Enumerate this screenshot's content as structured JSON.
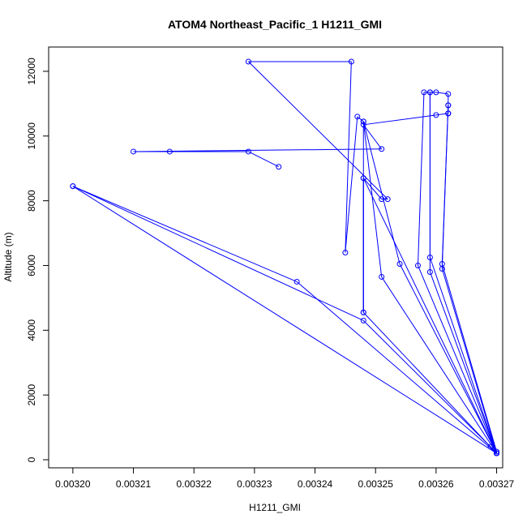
{
  "chart_data": {
    "type": "line",
    "title": "ATOM4 Northeast_Pacific_1 H1211_GMI",
    "xlabel": "H1211_GMI",
    "ylabel": "Altitude (m)",
    "xlim": [
      0.003196,
      0.003271
    ],
    "ylim": [
      -250,
      12750
    ],
    "xticks": [
      0.0032,
      0.00321,
      0.00322,
      0.00323,
      0.00324,
      0.00325,
      0.00326,
      0.00327
    ],
    "xtick_labels": [
      "0.00320",
      "0.00321",
      "0.00322",
      "0.00323",
      "0.00324",
      "0.00325",
      "0.00326",
      "0.00327"
    ],
    "yticks": [
      0,
      2000,
      4000,
      6000,
      8000,
      10000,
      12000
    ],
    "ytick_labels": [
      "0",
      "2000",
      "4000",
      "6000",
      "8000",
      "10000",
      "12000"
    ],
    "grid": false,
    "color": "#0000ff",
    "series": [
      {
        "points": [
          [
            0.003234,
            9050
          ],
          [
            0.003229,
            9520
          ],
          [
            0.003216,
            9520
          ],
          [
            0.00321,
            9520
          ],
          [
            0.003251,
            9600
          ],
          [
            0.003248,
            10350
          ],
          [
            0.00326,
            10650
          ],
          [
            0.003262,
            10700
          ],
          [
            0.003262,
            10700
          ],
          [
            0.003262,
            10700
          ],
          [
            0.003262,
            10950
          ],
          [
            0.003262,
            11300
          ],
          [
            0.00326,
            11350
          ],
          [
            0.003259,
            11350
          ],
          [
            0.003258,
            11350
          ],
          [
            0.003257,
            6000
          ],
          [
            0.00327,
            200
          ],
          [
            0.00327,
            250
          ],
          [
            0.003261,
            6050
          ],
          [
            0.003262,
            10950
          ],
          [
            0.003261,
            5900
          ],
          [
            0.00327,
            200
          ],
          [
            0.003259,
            6250
          ],
          [
            0.003259,
            11350
          ],
          [
            0.003259,
            5800
          ],
          [
            0.00327,
            200
          ],
          [
            0.003254,
            6050
          ],
          [
            0.003248,
            10450
          ],
          [
            0.003251,
            5650
          ],
          [
            0.00327,
            200
          ],
          [
            0.003248,
            8700
          ],
          [
            0.003248,
            4550
          ],
          [
            0.003248,
            10450
          ],
          [
            0.003247,
            10600
          ],
          [
            0.003245,
            6400
          ],
          [
            0.003246,
            12300
          ],
          [
            0.003229,
            12300
          ],
          [
            0.003252,
            8050
          ],
          [
            0.003251,
            8050
          ],
          [
            0.003248,
            8700
          ],
          [
            0.003248,
            4550
          ],
          [
            0.00327,
            200
          ],
          [
            0.003269,
            400
          ],
          [
            0.003248,
            4300
          ],
          [
            0.0032,
            8450
          ],
          [
            0.003237,
            5500
          ],
          [
            0.00327,
            200
          ],
          [
            0.0032,
            8450
          ]
        ]
      }
    ]
  }
}
